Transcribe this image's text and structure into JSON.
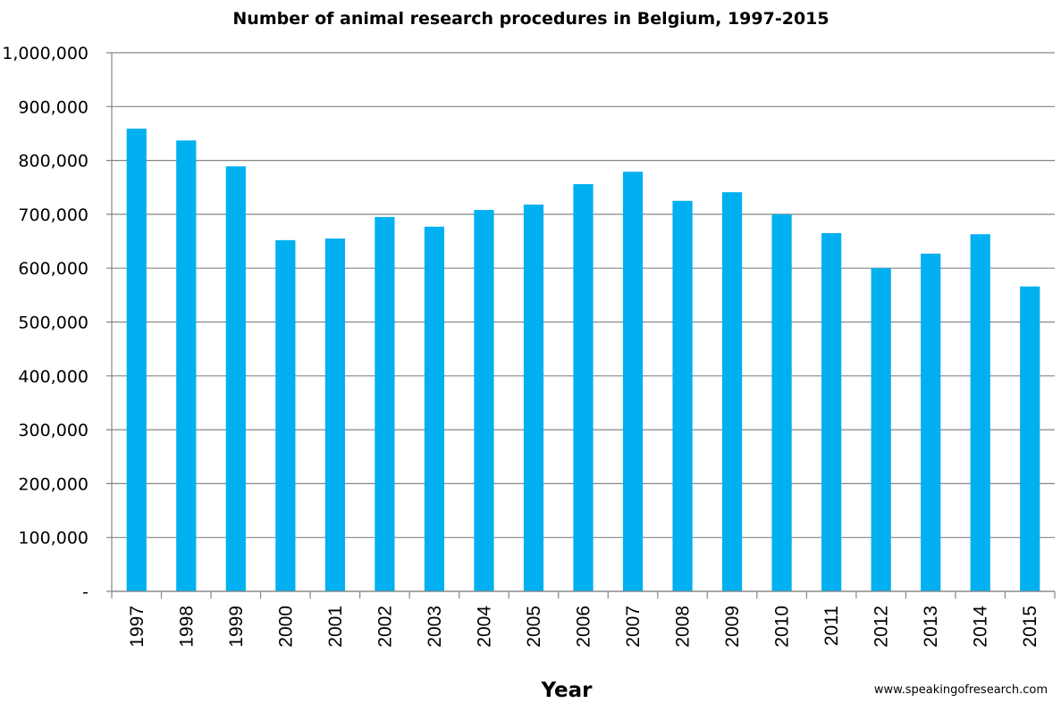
{
  "chart_data": {
    "type": "bar",
    "title": "Number of animal research procedures in Belgium, 1997-2015",
    "xlabel": "Year",
    "ylabel": "",
    "ylim": [
      0,
      1000000
    ],
    "yticks": [
      0,
      100000,
      200000,
      300000,
      400000,
      500000,
      600000,
      700000,
      800000,
      900000,
      1000000
    ],
    "ytick_labels": [
      "-",
      "100,000",
      "200,000",
      "300,000",
      "400,000",
      "500,000",
      "600,000",
      "700,000",
      "800,000",
      "900,000",
      "1,000,000"
    ],
    "grid": true,
    "legend": "none",
    "bar_color": "#00B0F0",
    "categories": [
      "1997",
      "1998",
      "1999",
      "2000",
      "2001",
      "2002",
      "2003",
      "2004",
      "2005",
      "2006",
      "2007",
      "2008",
      "2009",
      "2010",
      "2011",
      "2012",
      "2013",
      "2014",
      "2015"
    ],
    "values": [
      859000,
      837000,
      789000,
      652000,
      655000,
      695000,
      677000,
      708000,
      718000,
      756000,
      779000,
      725000,
      741000,
      700000,
      665000,
      600000,
      627000,
      663000,
      566000
    ]
  },
  "credit": "www.speakingofresearch.com"
}
